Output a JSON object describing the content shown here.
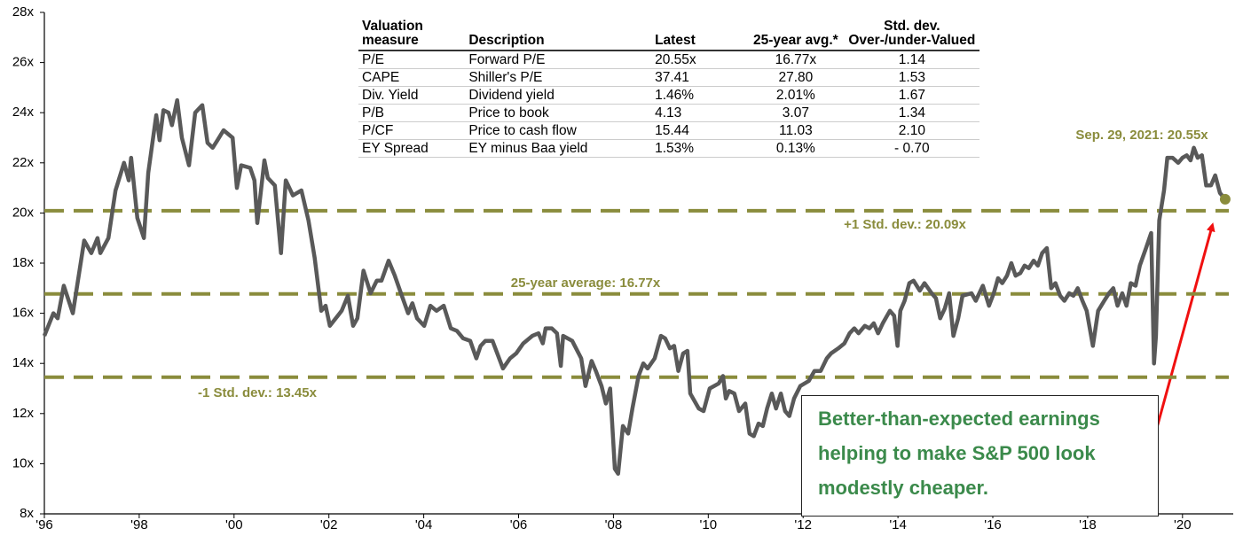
{
  "chart_data": {
    "type": "line",
    "x": [
      1996.0,
      1996.19,
      1996.28,
      1996.41,
      1996.6,
      1996.84,
      1996.99,
      1997.12,
      1997.18,
      1997.35,
      1997.5,
      1997.68,
      1997.78,
      1997.83,
      1997.96,
      1998.1,
      1998.19,
      1998.36,
      1998.43,
      1998.51,
      1998.62,
      1998.69,
      1998.8,
      1998.9,
      1999.05,
      1999.18,
      1999.33,
      1999.44,
      1999.55,
      1999.65,
      1999.78,
      1999.97,
      2000.06,
      2000.15,
      2000.34,
      2000.43,
      2000.49,
      2000.64,
      2000.71,
      2000.86,
      2000.99,
      2001.09,
      2001.24,
      2001.42,
      2001.57,
      2001.7,
      2001.84,
      2001.93,
      2002.02,
      2002.27,
      2002.4,
      2002.51,
      2002.6,
      2002.73,
      2002.88,
      2003.01,
      2003.11,
      2003.26,
      2003.39,
      2003.52,
      2003.67,
      2003.76,
      2003.86,
      2004.01,
      2004.14,
      2004.27,
      2004.42,
      2004.57,
      2004.7,
      2004.83,
      2004.98,
      2005.11,
      2005.2,
      2005.3,
      2005.45,
      2005.67,
      2005.82,
      2005.95,
      2006.1,
      2006.29,
      2006.42,
      2006.51,
      2006.57,
      2006.7,
      2006.81,
      2006.89,
      2006.94,
      2007.13,
      2007.32,
      2007.41,
      2007.54,
      2007.63,
      2007.75,
      2007.84,
      2007.93,
      2008.03,
      2008.1,
      2008.2,
      2008.31,
      2008.4,
      2008.53,
      2008.63,
      2008.72,
      2008.87,
      2009.0,
      2009.09,
      2009.19,
      2009.28,
      2009.37,
      2009.47,
      2009.56,
      2009.62,
      2009.8,
      2009.9,
      2010.03,
      2010.22,
      2010.31,
      2010.37,
      2010.44,
      2010.55,
      2010.65,
      2010.78,
      2010.87,
      2010.96,
      2011.06,
      2011.15,
      2011.24,
      2011.34,
      2011.43,
      2011.53,
      2011.62,
      2011.71,
      2011.81,
      2011.94,
      2012.12,
      2012.24,
      2012.37,
      2012.5,
      2012.59,
      2012.74,
      2012.87,
      2012.98,
      2013.08,
      2013.17,
      2013.3,
      2013.4,
      2013.49,
      2013.58,
      2013.68,
      2013.83,
      2013.92,
      2013.99,
      2014.05,
      2014.14,
      2014.24,
      2014.33,
      2014.46,
      2014.56,
      2014.71,
      2014.8,
      2014.89,
      2014.99,
      2015.08,
      2015.17,
      2015.27,
      2015.36,
      2015.55,
      2015.64,
      2015.79,
      2015.87,
      2015.92,
      2016.02,
      2016.11,
      2016.2,
      2016.3,
      2016.39,
      2016.48,
      2016.58,
      2016.67,
      2016.76,
      2016.86,
      2016.95,
      2017.04,
      2017.14,
      2017.23,
      2017.32,
      2017.42,
      2017.51,
      2017.61,
      2017.7,
      2017.79,
      2017.89,
      2017.98,
      2018.11,
      2018.22,
      2018.35,
      2018.45,
      2018.54,
      2018.63,
      2018.73,
      2018.82,
      2018.91,
      2019.01,
      2019.1,
      2019.23,
      2019.34,
      2019.4,
      2019.44,
      2019.51,
      2019.61,
      2019.68,
      2019.79,
      2019.91,
      2020.0,
      2020.09,
      2020.17,
      2020.24,
      2020.32,
      2020.41,
      2020.5,
      2020.6,
      2020.69,
      2020.79,
      2020.9
    ],
    "values": [
      15.1,
      16.0,
      15.8,
      17.1,
      16.0,
      18.9,
      18.4,
      19.0,
      18.4,
      19.0,
      20.9,
      22.0,
      21.3,
      22.2,
      19.8,
      19.0,
      21.6,
      23.9,
      22.9,
      24.1,
      24.0,
      23.5,
      24.5,
      23.0,
      21.9,
      24.0,
      24.3,
      22.8,
      22.6,
      22.9,
      23.3,
      23.0,
      21.0,
      21.9,
      21.8,
      21.3,
      19.6,
      22.1,
      21.4,
      21.1,
      18.4,
      21.3,
      20.7,
      20.9,
      19.7,
      18.2,
      16.1,
      16.3,
      15.5,
      16.1,
      16.7,
      15.5,
      15.8,
      17.7,
      16.8,
      17.3,
      17.3,
      18.1,
      17.5,
      16.8,
      16.0,
      16.4,
      15.8,
      15.5,
      16.3,
      16.1,
      16.3,
      15.4,
      15.3,
      15.0,
      14.9,
      14.2,
      14.7,
      14.9,
      14.9,
      13.8,
      14.2,
      14.4,
      14.8,
      15.1,
      15.2,
      14.8,
      15.4,
      15.4,
      15.2,
      13.9,
      15.1,
      14.9,
      14.2,
      13.1,
      14.1,
      13.7,
      13.1,
      12.4,
      13.0,
      9.8,
      9.6,
      11.5,
      11.2,
      12.2,
      13.5,
      14.0,
      13.8,
      14.2,
      15.1,
      15.0,
      14.6,
      14.7,
      13.7,
      14.4,
      14.5,
      12.8,
      12.2,
      12.1,
      13.0,
      13.2,
      13.5,
      12.6,
      12.9,
      12.8,
      12.1,
      12.4,
      11.2,
      11.1,
      11.6,
      11.5,
      12.2,
      12.8,
      12.2,
      12.8,
      12.1,
      11.9,
      12.6,
      13.1,
      13.3,
      13.7,
      13.7,
      14.2,
      14.4,
      14.6,
      14.8,
      15.2,
      15.4,
      15.2,
      15.5,
      15.4,
      15.6,
      15.2,
      15.6,
      16.1,
      15.9,
      14.7,
      16.1,
      16.5,
      17.2,
      17.3,
      16.9,
      17.2,
      16.8,
      16.6,
      15.8,
      16.2,
      16.8,
      15.1,
      15.8,
      16.7,
      16.8,
      16.5,
      17.1,
      16.6,
      16.3,
      16.8,
      17.4,
      17.2,
      17.5,
      18.0,
      17.5,
      17.6,
      17.9,
      17.8,
      18.1,
      17.9,
      18.4,
      18.6,
      17.0,
      17.2,
      16.7,
      16.5,
      16.8,
      16.7,
      17.0,
      16.5,
      16.1,
      14.7,
      16.1,
      16.5,
      16.8,
      17.0,
      16.3,
      16.8,
      16.3,
      17.2,
      17.1,
      17.9,
      18.6,
      19.2,
      14.0,
      15.1,
      19.7,
      20.9,
      22.2,
      22.2,
      22.0,
      22.2,
      22.3,
      22.1,
      22.6,
      22.2,
      22.3,
      21.1,
      21.1,
      21.5,
      20.8,
      20.55
    ],
    "color": "#595959",
    "xlim": [
      1996,
      2021.07
    ],
    "xticks": [
      {
        "value": 1996,
        "label": "'96"
      },
      {
        "value": 1998,
        "label": "'98"
      },
      {
        "value": 2000,
        "label": "'00"
      },
      {
        "value": 2002,
        "label": "'02"
      },
      {
        "value": 2004,
        "label": "'04"
      },
      {
        "value": 2006,
        "label": "'06"
      },
      {
        "value": 2008,
        "label": "'08"
      },
      {
        "value": 2010,
        "label": "'10"
      },
      {
        "value": 2012,
        "label": "'12"
      },
      {
        "value": 2014,
        "label": "'14"
      },
      {
        "value": 2016,
        "label": "'16"
      },
      {
        "value": 2018,
        "label": "'18"
      },
      {
        "value": 2020,
        "label": "'20"
      }
    ],
    "ylim": [
      8,
      28
    ],
    "yticks": [
      {
        "value": 8,
        "label": "8x"
      },
      {
        "value": 10,
        "label": "10x"
      },
      {
        "value": 12,
        "label": "12x"
      },
      {
        "value": 14,
        "label": "14x"
      },
      {
        "value": 16,
        "label": "16x"
      },
      {
        "value": 18,
        "label": "18x"
      },
      {
        "value": 20,
        "label": "20x"
      },
      {
        "value": 22,
        "label": "22x"
      },
      {
        "value": 24,
        "label": "24x"
      },
      {
        "value": 26,
        "label": "26x"
      },
      {
        "value": 28,
        "label": "28x"
      }
    ],
    "grid": false,
    "reference_lines": [
      {
        "label": "+1 Std. dev.: 20.09x",
        "value": 20.09
      },
      {
        "label": "25-year average: 16.77x",
        "value": 16.77
      },
      {
        "label": "-1 Std. dev.: 13.45x",
        "value": 13.45
      }
    ],
    "reference_color": "#8a8c3c",
    "endpoint_label": "Sep. 29, 2021: 20.55x",
    "callout": "Better-than-expected earnings helping to make S&P 500 look modestly cheaper.",
    "table": {
      "columns": [
        "Valuation measure",
        "Description",
        "Latest",
        "25-year avg.*",
        "Std. dev. Over-/under-Valued"
      ],
      "rows": [
        [
          "P/E",
          "Forward P/E",
          "20.55x",
          "16.77x",
          "1.14"
        ],
        [
          "CAPE",
          "Shiller's P/E",
          "37.41",
          "27.80",
          "1.53"
        ],
        [
          "Div. Yield",
          "Dividend yield",
          "1.46%",
          "2.01%",
          "1.67"
        ],
        [
          "P/B",
          "Price to book",
          "4.13",
          "3.07",
          "1.34"
        ],
        [
          "P/CF",
          "Price to cash flow",
          "15.44",
          "11.03",
          "2.10"
        ],
        [
          "EY Spread",
          "EY minus Baa yield",
          "1.53%",
          "0.13%",
          "- 0.70"
        ]
      ]
    }
  }
}
